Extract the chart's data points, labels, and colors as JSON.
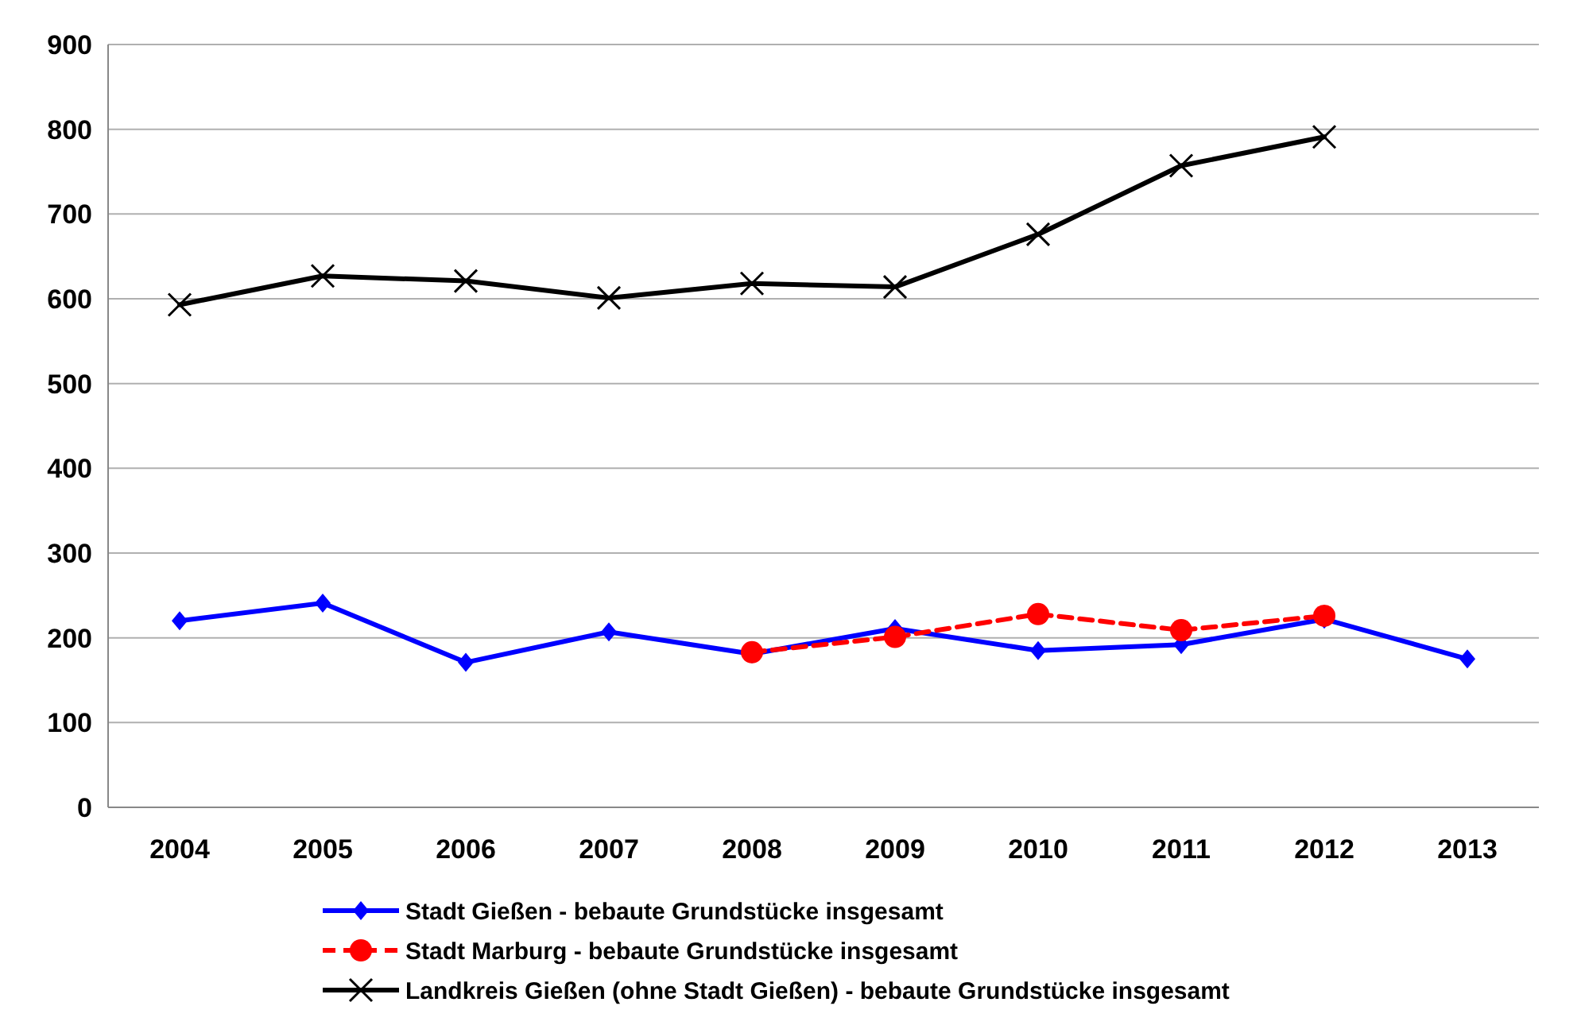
{
  "chart_data": {
    "type": "line",
    "categories": [
      "2004",
      "2005",
      "2006",
      "2007",
      "2008",
      "2009",
      "2010",
      "2011",
      "2012",
      "2013"
    ],
    "ylim": [
      0,
      900
    ],
    "yticks": [
      0,
      100,
      200,
      300,
      400,
      500,
      600,
      700,
      800,
      900
    ],
    "grid": "y",
    "legend": "bottom",
    "series": [
      {
        "name": "Stadt Gießen - bebaute Grundstücke insgesamt",
        "color": "#0000ff",
        "marker": "diamond",
        "line_style": "solid",
        "values": [
          220,
          241,
          171,
          207,
          181,
          211,
          185,
          192,
          222,
          175
        ]
      },
      {
        "name": "Stadt Marburg - bebaute Grundstücke insgesamt",
        "color": "#ff0000",
        "marker": "circle",
        "line_style": "dashed",
        "values": [
          null,
          null,
          null,
          null,
          183,
          201,
          228,
          209,
          226,
          null
        ]
      },
      {
        "name": "Landkreis Gießen (ohne Stadt Gießen) - bebaute Grundstücke insgesamt",
        "color": "#000000",
        "marker": "cross",
        "line_style": "solid",
        "values": [
          593,
          627,
          621,
          601,
          618,
          614,
          676,
          757,
          791,
          null
        ]
      }
    ]
  }
}
